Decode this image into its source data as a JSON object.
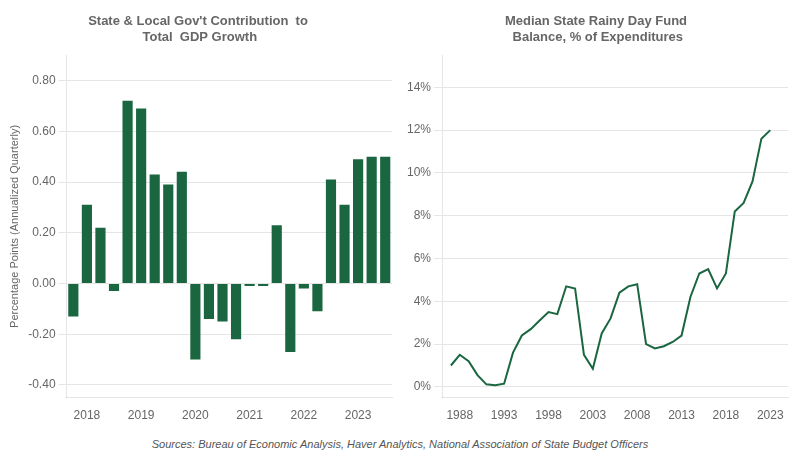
{
  "chart_data": [
    {
      "type": "bar",
      "title": "State & Local Gov't Contribution  to\n Total  GDP Growth",
      "ylabel": "Percentage Points (Annualized Quarterly)",
      "categories": [
        null,
        "2018",
        null,
        null,
        null,
        "2019",
        null,
        null,
        null,
        "2020",
        null,
        null,
        null,
        "2021",
        null,
        null,
        null,
        "2022",
        null,
        null,
        null,
        "2023",
        null,
        null
      ],
      "values": [
        -0.13,
        0.31,
        0.22,
        -0.03,
        0.72,
        0.69,
        0.43,
        0.39,
        0.44,
        -0.3,
        -0.14,
        -0.15,
        -0.22,
        -0.01,
        -0.01,
        0.23,
        -0.27,
        -0.02,
        -0.11,
        0.41,
        0.31,
        0.49,
        0.5,
        0.5
      ],
      "color": "#1a6641",
      "ylim": [
        -0.45,
        0.9
      ],
      "yticks": [
        {
          "value": -0.4,
          "label": "-0.40"
        },
        {
          "value": -0.2,
          "label": "-0.20"
        },
        {
          "value": 0,
          "label": "0.00"
        },
        {
          "value": 0.2,
          "label": "0.20"
        },
        {
          "value": 0.4,
          "label": "0.40"
        },
        {
          "value": 0.6,
          "label": "0.60"
        },
        {
          "value": 0.8,
          "label": "0.80"
        }
      ],
      "grid": true,
      "annotations": [
        "Sources: Bureau of Economic Analysis, Haver Analytics, National Association of State Budget Officers"
      ]
    },
    {
      "type": "line",
      "title": "Median State Rainy Day Fund\n Balance, % of Expenditures",
      "x": [
        1987,
        1988,
        1989,
        1990,
        1991,
        1992,
        1993,
        1994,
        1995,
        1996,
        1997,
        1998,
        1999,
        2000,
        2001,
        2002,
        2003,
        2004,
        2005,
        2006,
        2007,
        2008,
        2009,
        2010,
        2011,
        2012,
        2013,
        2014,
        2015,
        2016,
        2017,
        2018,
        2019,
        2020,
        2021,
        2022,
        2023
      ],
      "values": [
        1.0,
        1.5,
        1.2,
        0.55,
        0.12,
        0.08,
        0.15,
        1.6,
        2.4,
        2.7,
        3.1,
        3.5,
        3.4,
        4.7,
        4.6,
        1.5,
        0.85,
        2.5,
        3.2,
        4.4,
        4.7,
        4.8,
        2.0,
        1.8,
        1.9,
        2.1,
        2.4,
        4.2,
        5.3,
        5.5,
        4.6,
        5.3,
        8.2,
        8.6,
        9.6,
        11.6,
        12.0
      ],
      "color": "#1a6641",
      "xlim": [
        1986,
        2025
      ],
      "xticks": [
        1988,
        1993,
        1998,
        2003,
        2008,
        2013,
        2018,
        2023
      ],
      "ylim": [
        -0.5,
        15.5
      ],
      "yticks": [
        {
          "value": 0,
          "label": "0%"
        },
        {
          "value": 2,
          "label": "2%"
        },
        {
          "value": 4,
          "label": "4%"
        },
        {
          "value": 6,
          "label": "6%"
        },
        {
          "value": 8,
          "label": "8%"
        },
        {
          "value": 10,
          "label": "10%"
        },
        {
          "value": 12,
          "label": "12%"
        },
        {
          "value": 14,
          "label": "14%"
        }
      ],
      "grid": true
    }
  ]
}
